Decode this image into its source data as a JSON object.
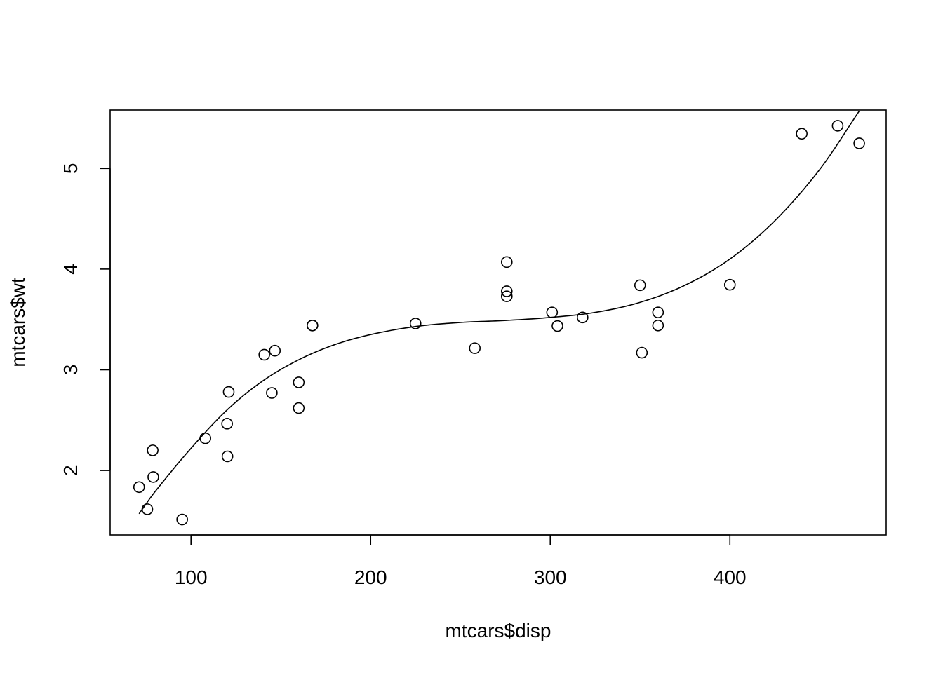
{
  "chart_data": {
    "type": "scatter",
    "title": "",
    "xlabel": "mtcars$disp",
    "ylabel": "mtcars$wt",
    "xlim": [
      55,
      487
    ],
    "ylim": [
      1.36,
      5.58
    ],
    "xticks": [
      100,
      200,
      300,
      400
    ],
    "yticks": [
      2,
      3,
      4,
      5
    ],
    "grid": false,
    "legend": "none",
    "colors": {
      "points": "#000000",
      "line": "#000000",
      "frame": "#000000"
    },
    "points": [
      {
        "x": 160,
        "y": 2.62
      },
      {
        "x": 160,
        "y": 2.875
      },
      {
        "x": 108,
        "y": 2.32
      },
      {
        "x": 258,
        "y": 3.215
      },
      {
        "x": 360,
        "y": 3.44
      },
      {
        "x": 225,
        "y": 3.46
      },
      {
        "x": 360,
        "y": 3.57
      },
      {
        "x": 146.7,
        "y": 3.19
      },
      {
        "x": 140.8,
        "y": 3.15
      },
      {
        "x": 167.6,
        "y": 3.44
      },
      {
        "x": 167.6,
        "y": 3.44
      },
      {
        "x": 275.8,
        "y": 4.07
      },
      {
        "x": 275.8,
        "y": 3.73
      },
      {
        "x": 275.8,
        "y": 3.78
      },
      {
        "x": 472,
        "y": 5.25
      },
      {
        "x": 460,
        "y": 5.424
      },
      {
        "x": 440,
        "y": 5.345
      },
      {
        "x": 78.7,
        "y": 2.2
      },
      {
        "x": 75.7,
        "y": 1.615
      },
      {
        "x": 71.1,
        "y": 1.835
      },
      {
        "x": 120.1,
        "y": 2.465
      },
      {
        "x": 318,
        "y": 3.52
      },
      {
        "x": 304,
        "y": 3.435
      },
      {
        "x": 350,
        "y": 3.84
      },
      {
        "x": 400,
        "y": 3.845
      },
      {
        "x": 79,
        "y": 1.935
      },
      {
        "x": 120.3,
        "y": 2.14
      },
      {
        "x": 95.1,
        "y": 1.513
      },
      {
        "x": 351,
        "y": 3.17
      },
      {
        "x": 145,
        "y": 2.77
      },
      {
        "x": 301,
        "y": 3.57
      },
      {
        "x": 121,
        "y": 2.78
      }
    ],
    "fit_curve": {
      "type": "cubic",
      "x": [
        71.1,
        80,
        100,
        120,
        140,
        160,
        180,
        200,
        225,
        250,
        275,
        300,
        325,
        350,
        375,
        400,
        425,
        450,
        472
      ],
      "y": [
        1.57,
        1.79,
        2.22,
        2.6,
        2.89,
        3.1,
        3.25,
        3.35,
        3.43,
        3.47,
        3.49,
        3.52,
        3.57,
        3.67,
        3.84,
        4.1,
        4.48,
        4.99,
        5.57
      ]
    }
  }
}
